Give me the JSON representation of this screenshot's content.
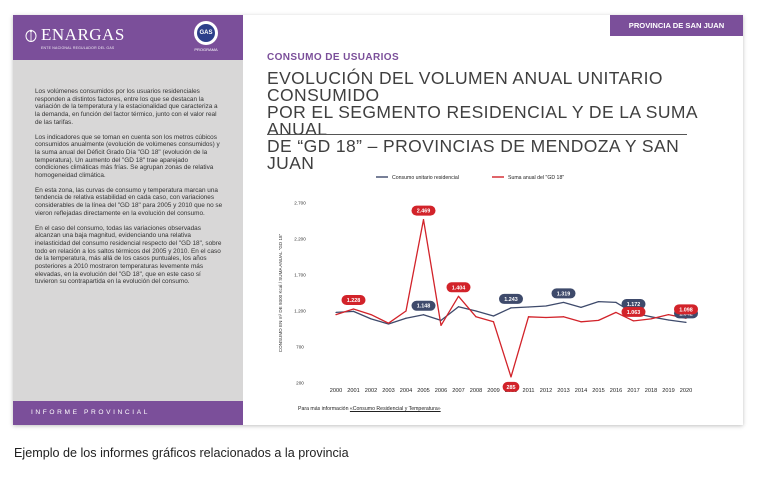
{
  "brand": {
    "name": "ENARGAS",
    "subtitle": "ENTE NACIONAL REGULADOR DEL GAS",
    "badge_text": "GAS",
    "badge_label": "PROGRAMA"
  },
  "sidebar": {
    "paragraphs": [
      "Los volúmenes consumidos por los usuarios residenciales responden a distintos factores, entre los que se destacan la variación de la temperatura y la estacionalidad que caracteriza a la demanda, en función del factor térmico, junto con el valor real de las tarifas.",
      "Los indicadores que se toman en cuenta son los metros cúbicos consumidos anualmente (evolución de volúmenes consumidos) y la suma anual del Déficit Grado Día \"GD 18\" (evolución de la temperatura). Un aumento del \"GD 18\" trae aparejado condiciones climáticas más frías. Se agrupan zonas de relativa homogeneidad climática.",
      "En esta zona, las curvas de consumo y temperatura marcan una tendencia de relativa estabilidad en cada caso, con variaciones considerables de la línea del \"GD 18\" para 2005 y 2010 que no se vieron reflejadas directamente en la evolución del consumo.",
      "En el caso del consumo, todas las variaciones observadas alcanzan una baja magnitud, evidenciando una relativa inelasticidad del consumo residencial respecto del \"GD 18\", sobre todo en relación a los saltos térmicos del 2005 y 2010. En el caso de la temperatura, más allá de los casos puntuales, los años posteriores a 2010 mostraron temperaturas levemente más elevadas, en la evolución del \"GD 18\", que en este caso sí tuvieron su contrapartida en la evolución del consumo."
    ],
    "footer_label": "INFORME PROVINCIAL"
  },
  "header": {
    "province": "PROVINCIA DE SAN JUAN",
    "section": "CONSUMO DE USUARIOS",
    "title_lines": [
      "EVOLUCIÓN DEL VOLUMEN ANUAL UNITARIO CONSUMIDO",
      "POR EL SEGMENTO RESIDENCIAL Y DE LA SUMA ANUAL",
      "DE “GD 18” – PROVINCIAS DE MENDOZA Y SAN JUAN"
    ]
  },
  "footer": {
    "prefix": "Para más información ",
    "link": "«Consumo Residencial y Temperatura»"
  },
  "caption": "Ejemplo de los informes gráficos relacionados a la provincia",
  "colors": {
    "accent": "#7b4f9a",
    "series_consumo": "#3e4a6b",
    "series_gd": "#d2232a"
  },
  "chart_data": {
    "type": "line",
    "x": [
      2000,
      2001,
      2002,
      2003,
      2004,
      2005,
      2006,
      2007,
      2008,
      2009,
      2010,
      2011,
      2012,
      2013,
      2014,
      2015,
      2016,
      2017,
      2018,
      2019,
      2020
    ],
    "ylabel": "CONSUMO EN m³ DE 9300 Kcal / SUMA ANUAL \"GD 18\"",
    "ylim": [
      200,
      2700
    ],
    "yticks": [
      200,
      700,
      1200,
      1700,
      2200,
      2700
    ],
    "ytick_labels": [
      "200",
      "700",
      "1.200",
      "1.700",
      "2.200",
      "2.700"
    ],
    "legend_position": "top",
    "grid": false,
    "series": [
      {
        "name": "Consumo unitario residencial",
        "color": "#3e4a6b",
        "values": [
          1180,
          1195,
          1090,
          1020,
          1100,
          1148,
          1070,
          1260,
          1200,
          1130,
          1243,
          1255,
          1270,
          1319,
          1250,
          1330,
          1320,
          1172,
          1120,
          1075,
          1042
        ],
        "labels": [
          {
            "x": 2005,
            "text": "1.148"
          },
          {
            "x": 2010,
            "text": "1.243"
          },
          {
            "x": 2013,
            "text": "1.319"
          },
          {
            "x": 2017,
            "text": "1.172"
          },
          {
            "x": 2020,
            "text": "1.042"
          }
        ]
      },
      {
        "name": "Suma anual del \"GD 18\"",
        "color": "#d2232a",
        "values": [
          1150,
          1228,
          1150,
          1030,
          1200,
          2469,
          1000,
          1404,
          1120,
          1050,
          285,
          1120,
          1110,
          1120,
          1050,
          1070,
          1180,
          1063,
          1090,
          1150,
          1098
        ],
        "labels": [
          {
            "x": 2001,
            "text": "1.228"
          },
          {
            "x": 2005,
            "text": "2.469"
          },
          {
            "x": 2007,
            "text": "1.404"
          },
          {
            "x": 2010,
            "text": "285"
          },
          {
            "x": 2017,
            "text": "1.063"
          },
          {
            "x": 2020,
            "text": "1.098"
          }
        ]
      }
    ]
  }
}
